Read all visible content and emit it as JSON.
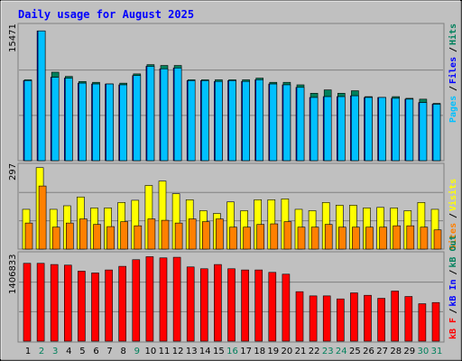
{
  "chart_data": [
    {
      "type": "bar",
      "title": "Daily usage for August 2025",
      "categories": [
        "1",
        "2",
        "3",
        "4",
        "5",
        "6",
        "7",
        "8",
        "9",
        "10",
        "11",
        "12",
        "13",
        "14",
        "15",
        "16",
        "17",
        "18",
        "19",
        "20",
        "21",
        "22",
        "23",
        "24",
        "25",
        "26",
        "27",
        "28",
        "29",
        "30",
        "31"
      ],
      "weekend_days": [
        "2",
        "3",
        "9",
        "16",
        "23",
        "24",
        "30",
        "31"
      ],
      "y_max_label": "15471",
      "series": [
        {
          "name": "Hits",
          "color": "#00805c",
          "values": [
            9600,
            15400,
            10500,
            10000,
            9400,
            9300,
            9100,
            9200,
            10300,
            11400,
            11300,
            11300,
            9600,
            9600,
            9600,
            9600,
            9600,
            9800,
            9300,
            9300,
            9000,
            8000,
            8400,
            8000,
            8300,
            7600,
            7500,
            7600,
            7400,
            7300,
            6800
          ]
        },
        {
          "name": "Files",
          "color": "#0000ff",
          "values": [
            9500,
            15400,
            9900,
            9800,
            9200,
            9100,
            9100,
            9000,
            10100,
            11200,
            10900,
            11000,
            9500,
            9500,
            9400,
            9500,
            9400,
            9600,
            9100,
            9000,
            8700,
            7500,
            7600,
            7600,
            7700,
            7500,
            7500,
            7400,
            7300,
            6900,
            6700
          ]
        },
        {
          "name": "Pages",
          "color": "#00c0ff",
          "values": [
            9500,
            15400,
            9900,
            9800,
            9200,
            9100,
            9100,
            9000,
            10100,
            11200,
            10900,
            11000,
            9500,
            9500,
            9400,
            9500,
            9400,
            9600,
            9100,
            9000,
            8700,
            7500,
            7600,
            7600,
            7700,
            7500,
            7500,
            7400,
            7300,
            6900,
            6700
          ]
        }
      ]
    },
    {
      "type": "bar",
      "y_max_label": "297",
      "series": [
        {
          "name": "Visits",
          "color": "#ffff00",
          "values": [
            145,
            297,
            145,
            158,
            190,
            150,
            150,
            170,
            178,
            232,
            248,
            202,
            180,
            140,
            130,
            172,
            140,
            180,
            180,
            183,
            145,
            140,
            170,
            160,
            160,
            150,
            152,
            150,
            140,
            170,
            145
          ]
        },
        {
          "name": "Sites",
          "color": "#ff8000",
          "values": [
            95,
            230,
            80,
            95,
            110,
            90,
            82,
            100,
            85,
            110,
            105,
            95,
            110,
            100,
            110,
            80,
            80,
            90,
            92,
            100,
            80,
            80,
            90,
            80,
            80,
            80,
            80,
            85,
            85,
            80,
            70
          ]
        }
      ]
    },
    {
      "type": "bar",
      "y_max_label": "1406833",
      "series": [
        {
          "name": "kB F",
          "color": "#ff0000",
          "values": [
            0,
            0,
            0,
            0,
            0,
            0,
            0,
            0,
            0,
            0,
            0,
            0,
            0,
            0,
            0,
            0,
            0,
            0,
            0,
            0,
            0,
            0,
            0,
            0,
            0,
            0,
            0,
            0,
            0,
            0,
            0
          ]
        },
        {
          "name": "kB In",
          "color": "#0000ff",
          "values": [
            0,
            0,
            0,
            0,
            0,
            0,
            0,
            0,
            0,
            0,
            0,
            0,
            0,
            0,
            0,
            0,
            0,
            0,
            0,
            0,
            0,
            0,
            0,
            0,
            0,
            0,
            0,
            0,
            0,
            0,
            0
          ]
        },
        {
          "name": "kB Out",
          "color": "#00805c",
          "values": [
            0,
            0,
            0,
            0,
            0,
            0,
            0,
            0,
            0,
            0,
            0,
            0,
            0,
            0,
            0,
            0,
            0,
            0,
            0,
            0,
            0,
            0,
            0,
            0,
            0,
            0,
            0,
            0,
            0,
            0,
            0
          ]
        },
        {
          "name": "kB F",
          "color": "#ff0000",
          "values": [
            1290000,
            1290000,
            1270000,
            1260000,
            1160000,
            1130000,
            1180000,
            1240000,
            1350000,
            1400000,
            1380000,
            1390000,
            1230000,
            1200000,
            1270000,
            1200000,
            1180000,
            1180000,
            1140000,
            1110000,
            820000,
            750000,
            750000,
            700000,
            800000,
            760000,
            710000,
            830000,
            740000,
            620000,
            640000
          ]
        }
      ]
    }
  ],
  "legend_top": [
    {
      "label": "Pages",
      "color": "#00c0ff"
    },
    {
      "label": "Files",
      "color": "#0000ff"
    },
    {
      "label": "Hits",
      "color": "#00805c"
    }
  ],
  "legend_mid": [
    {
      "label": "Sites",
      "color": "#ff8000"
    },
    {
      "label": "Visits",
      "color": "#ffff00"
    }
  ],
  "legend_bot": [
    {
      "label": "kB F",
      "color": "#ff0000"
    },
    {
      "label": "kB In",
      "color": "#0000ff"
    },
    {
      "label": "kB Out",
      "color": "#00805c"
    }
  ],
  "colors": {
    "title": "#0000ff",
    "weekday": "#000000",
    "weekend": "#00805c",
    "panel_bg": "#c0c0c0"
  }
}
